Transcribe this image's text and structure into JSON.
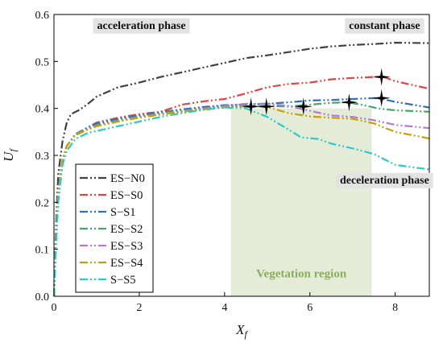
{
  "chart_data": {
    "type": "line",
    "xlabel": "X",
    "xlabel_sub": "f",
    "ylabel": "U",
    "ylabel_sub": "f",
    "xlim": [
      0,
      8.8
    ],
    "ylim": [
      0,
      0.6
    ],
    "xticks": [
      0,
      2,
      4,
      6,
      8
    ],
    "yticks": [
      0.0,
      0.1,
      0.2,
      0.3,
      0.4,
      0.5,
      0.6
    ],
    "ytick_labels": [
      "0.0",
      "0.1",
      "0.2",
      "0.3",
      "0.4",
      "0.5",
      "0.6"
    ],
    "grid": false,
    "legend_position": "left",
    "vegetation_region": {
      "x_range": [
        4.15,
        7.45
      ],
      "label": "Vegetation region",
      "color": "#e4ecd8",
      "label_color": "#8aae5a"
    },
    "phase_labels": [
      {
        "text": "acceleration phase",
        "x": 2.05,
        "y": 0.578
      },
      {
        "text": "constant phase",
        "x": 7.75,
        "y": 0.578
      },
      {
        "text": "deceleration phase",
        "x": 7.75,
        "y": 0.249
      }
    ],
    "series": [
      {
        "name": "ES−N0",
        "color": "#404040",
        "points": [
          [
            0,
            0
          ],
          [
            0.05,
            0.15
          ],
          [
            0.1,
            0.26
          ],
          [
            0.2,
            0.33
          ],
          [
            0.3,
            0.37
          ],
          [
            0.4,
            0.388
          ],
          [
            0.6,
            0.397
          ],
          [
            0.8,
            0.41
          ],
          [
            1.0,
            0.425
          ],
          [
            1.5,
            0.445
          ],
          [
            2,
            0.455
          ],
          [
            2.5,
            0.467
          ],
          [
            3,
            0.477
          ],
          [
            3.5,
            0.487
          ],
          [
            4,
            0.497
          ],
          [
            4.5,
            0.507
          ],
          [
            5,
            0.513
          ],
          [
            5.5,
            0.52
          ],
          [
            6,
            0.527
          ],
          [
            6.5,
            0.532
          ],
          [
            7,
            0.535
          ],
          [
            7.5,
            0.537
          ],
          [
            8,
            0.54
          ],
          [
            8.8,
            0.539
          ]
        ]
      },
      {
        "name": "ES−S0",
        "color": "#e04545",
        "points": [
          [
            0,
            0
          ],
          [
            0.05,
            0.12
          ],
          [
            0.1,
            0.22
          ],
          [
            0.2,
            0.29
          ],
          [
            0.3,
            0.32
          ],
          [
            0.5,
            0.345
          ],
          [
            0.8,
            0.36
          ],
          [
            1.0,
            0.37
          ],
          [
            1.5,
            0.38
          ],
          [
            2,
            0.388
          ],
          [
            2.5,
            0.393
          ],
          [
            3,
            0.408
          ],
          [
            3.5,
            0.415
          ],
          [
            4,
            0.42
          ],
          [
            4.5,
            0.432
          ],
          [
            5,
            0.445
          ],
          [
            5.5,
            0.452
          ],
          [
            6,
            0.455
          ],
          [
            6.5,
            0.462
          ],
          [
            7,
            0.465
          ],
          [
            7.5,
            0.467
          ],
          [
            7.7,
            0.468
          ],
          [
            8,
            0.458
          ],
          [
            8.8,
            0.442
          ]
        ]
      },
      {
        "name": "S−S1",
        "color": "#2e6fbf",
        "points": [
          [
            0,
            0
          ],
          [
            0.05,
            0.12
          ],
          [
            0.1,
            0.22
          ],
          [
            0.2,
            0.29
          ],
          [
            0.3,
            0.32
          ],
          [
            0.5,
            0.345
          ],
          [
            0.8,
            0.36
          ],
          [
            1.0,
            0.368
          ],
          [
            1.5,
            0.378
          ],
          [
            2,
            0.385
          ],
          [
            2.5,
            0.392
          ],
          [
            3,
            0.398
          ],
          [
            3.5,
            0.403
          ],
          [
            4,
            0.407
          ],
          [
            4.5,
            0.408
          ],
          [
            5,
            0.41
          ],
          [
            5.5,
            0.413
          ],
          [
            6,
            0.417
          ],
          [
            6.5,
            0.418
          ],
          [
            7,
            0.42
          ],
          [
            7.5,
            0.422
          ],
          [
            7.7,
            0.42
          ],
          [
            8,
            0.414
          ],
          [
            8.8,
            0.402
          ]
        ]
      },
      {
        "name": "ES−S2",
        "color": "#4aa46a",
        "points": [
          [
            0,
            0
          ],
          [
            0.05,
            0.12
          ],
          [
            0.1,
            0.22
          ],
          [
            0.2,
            0.29
          ],
          [
            0.3,
            0.32
          ],
          [
            0.5,
            0.345
          ],
          [
            0.8,
            0.358
          ],
          [
            1.0,
            0.365
          ],
          [
            1.5,
            0.375
          ],
          [
            2,
            0.383
          ],
          [
            2.5,
            0.39
          ],
          [
            3,
            0.396
          ],
          [
            3.5,
            0.4
          ],
          [
            4,
            0.404
          ],
          [
            4.5,
            0.404
          ],
          [
            5,
            0.405
          ],
          [
            5.5,
            0.404
          ],
          [
            6,
            0.408
          ],
          [
            6.5,
            0.412
          ],
          [
            6.9,
            0.413
          ],
          [
            7.2,
            0.408
          ],
          [
            7.6,
            0.4
          ],
          [
            8,
            0.396
          ],
          [
            8.8,
            0.393
          ]
        ]
      },
      {
        "name": "ES−S3",
        "color": "#b07ad8",
        "points": [
          [
            0,
            0
          ],
          [
            0.05,
            0.12
          ],
          [
            0.1,
            0.22
          ],
          [
            0.2,
            0.29
          ],
          [
            0.3,
            0.32
          ],
          [
            0.5,
            0.343
          ],
          [
            0.8,
            0.356
          ],
          [
            1.0,
            0.363
          ],
          [
            1.5,
            0.373
          ],
          [
            2,
            0.381
          ],
          [
            2.5,
            0.388
          ],
          [
            3,
            0.394
          ],
          [
            3.5,
            0.4
          ],
          [
            4,
            0.405
          ],
          [
            4.5,
            0.41
          ],
          [
            5,
            0.41
          ],
          [
            5.5,
            0.405
          ],
          [
            6,
            0.395
          ],
          [
            6.5,
            0.385
          ],
          [
            7,
            0.382
          ],
          [
            7.5,
            0.375
          ],
          [
            8,
            0.365
          ],
          [
            8.8,
            0.358
          ]
        ]
      },
      {
        "name": "ES−S4",
        "color": "#c9a000",
        "points": [
          [
            0,
            0
          ],
          [
            0.05,
            0.12
          ],
          [
            0.1,
            0.22
          ],
          [
            0.2,
            0.29
          ],
          [
            0.3,
            0.32
          ],
          [
            0.5,
            0.343
          ],
          [
            0.8,
            0.355
          ],
          [
            1.0,
            0.362
          ],
          [
            1.5,
            0.372
          ],
          [
            2,
            0.38
          ],
          [
            2.5,
            0.387
          ],
          [
            3,
            0.393
          ],
          [
            3.5,
            0.398
          ],
          [
            4,
            0.402
          ],
          [
            4.5,
            0.405
          ],
          [
            5,
            0.403
          ],
          [
            5.5,
            0.39
          ],
          [
            6,
            0.383
          ],
          [
            6.5,
            0.38
          ],
          [
            7,
            0.378
          ],
          [
            7.5,
            0.368
          ],
          [
            8,
            0.35
          ],
          [
            8.8,
            0.336
          ]
        ]
      },
      {
        "name": "S−S5",
        "color": "#2ec8c8",
        "points": [
          [
            0,
            0
          ],
          [
            0.05,
            0.11
          ],
          [
            0.1,
            0.2
          ],
          [
            0.2,
            0.28
          ],
          [
            0.3,
            0.31
          ],
          [
            0.5,
            0.335
          ],
          [
            0.8,
            0.348
          ],
          [
            1.0,
            0.352
          ],
          [
            1.5,
            0.362
          ],
          [
            2,
            0.372
          ],
          [
            2.5,
            0.382
          ],
          [
            3,
            0.39
          ],
          [
            3.5,
            0.397
          ],
          [
            4,
            0.402
          ],
          [
            4.5,
            0.4
          ],
          [
            5,
            0.382
          ],
          [
            5.5,
            0.355
          ],
          [
            5.8,
            0.338
          ],
          [
            6.2,
            0.335
          ],
          [
            6.5,
            0.325
          ],
          [
            7,
            0.315
          ],
          [
            7.5,
            0.303
          ],
          [
            8,
            0.28
          ],
          [
            8.8,
            0.27
          ]
        ]
      }
    ],
    "markers": [
      {
        "x": 4.62,
        "y": 0.404
      },
      {
        "x": 4.98,
        "y": 0.404
      },
      {
        "x": 5.85,
        "y": 0.404
      },
      {
        "x": 6.92,
        "y": 0.413
      },
      {
        "x": 7.68,
        "y": 0.422
      },
      {
        "x": 7.68,
        "y": 0.467
      }
    ]
  }
}
